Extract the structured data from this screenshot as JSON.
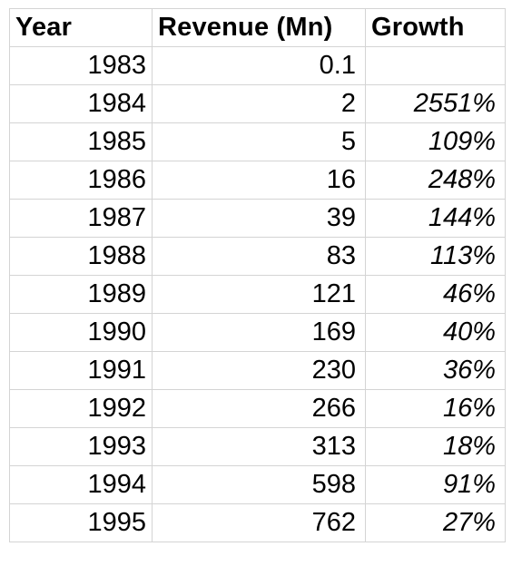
{
  "table": {
    "headers": [
      "Year",
      "Revenue (Mn)",
      "Growth"
    ],
    "rows": [
      {
        "year": "1983",
        "revenue": "0.1",
        "growth": ""
      },
      {
        "year": "1984",
        "revenue": "2",
        "growth": "2551%"
      },
      {
        "year": "1985",
        "revenue": "5",
        "growth": "109%"
      },
      {
        "year": "1986",
        "revenue": "16",
        "growth": "248%"
      },
      {
        "year": "1987",
        "revenue": "39",
        "growth": "144%"
      },
      {
        "year": "1988",
        "revenue": "83",
        "growth": "113%"
      },
      {
        "year": "1989",
        "revenue": "121",
        "growth": "46%"
      },
      {
        "year": "1990",
        "revenue": "169",
        "growth": "40%"
      },
      {
        "year": "1991",
        "revenue": "230",
        "growth": "36%"
      },
      {
        "year": "1992",
        "revenue": "266",
        "growth": "16%"
      },
      {
        "year": "1993",
        "revenue": "313",
        "growth": "18%"
      },
      {
        "year": "1994",
        "revenue": "598",
        "growth": "91%"
      },
      {
        "year": "1995",
        "revenue": "762",
        "growth": "27%"
      }
    ]
  }
}
